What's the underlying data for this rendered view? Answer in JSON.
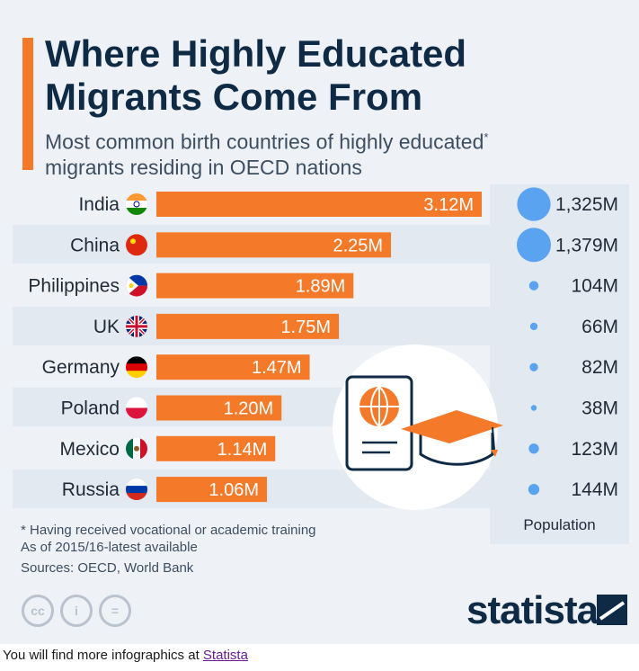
{
  "header": {
    "title": "Where Highly Educated Migrants Come From",
    "subtitle": "Most common birth countries of highly educated",
    "subtitle_mark": "*",
    "subtitle_line2": "migrants residing in OECD nations"
  },
  "colors": {
    "accent": "#f47a2a",
    "navy": "#0f2a44",
    "population_dot": "#5aa3f0",
    "background": "#eef2f7"
  },
  "chart_data": {
    "type": "bar",
    "orientation": "horizontal",
    "categories": [
      "India",
      "China",
      "Philippines",
      "UK",
      "Germany",
      "Poland",
      "Mexico",
      "Russia"
    ],
    "values": [
      3.12,
      2.25,
      1.89,
      1.75,
      1.47,
      1.2,
      1.14,
      1.06
    ],
    "value_labels": [
      "3.12M",
      "2.25M",
      "1.89M",
      "1.75M",
      "1.47M",
      "1.20M",
      "1.14M",
      "1.06M"
    ],
    "flag_icons": [
      "india-flag-icon",
      "china-flag-icon",
      "philippines-flag-icon",
      "uk-flag-icon",
      "germany-flag-icon",
      "poland-flag-icon",
      "mexico-flag-icon",
      "russia-flag-icon"
    ],
    "population": {
      "values": [
        1325,
        1379,
        104,
        66,
        82,
        38,
        123,
        144
      ],
      "labels": [
        "1,325M",
        "1,379M",
        "104M",
        "66M",
        "82M",
        "38M",
        "123M",
        "144M"
      ],
      "header": "Population"
    }
  },
  "notes": {
    "footnote": "* Having received vocational or academic training",
    "period": "As of 2015/16-latest available",
    "sources": "Sources: OECD, World Bank"
  },
  "branding": {
    "logo": "statista",
    "cc_icons": [
      "cc-icon",
      "attribution-icon",
      "no-derivatives-icon"
    ]
  },
  "footer": {
    "text": "You will find more infographics at",
    "link": "Statista"
  }
}
